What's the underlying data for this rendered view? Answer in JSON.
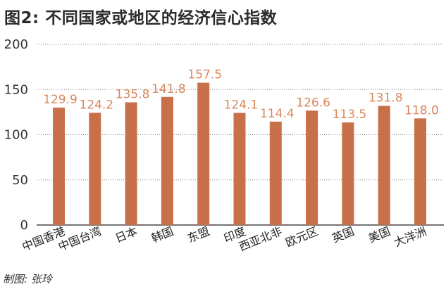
{
  "title": "图2: 不同国家或地区的经济信心指数",
  "credit": "制图: 张玲",
  "colors": {
    "bar": "#c8704a",
    "value_label": "#d9875c",
    "grid": "#8a8a8a",
    "axis": "#222222"
  },
  "chart_data": {
    "type": "bar",
    "title": "图2: 不同国家或地区的经济信心指数",
    "xlabel": "",
    "ylabel": "",
    "ylim": [
      0,
      200
    ],
    "yticks": [
      0,
      50,
      100,
      150,
      200
    ],
    "grid": true,
    "categories": [
      "中国香港",
      "中国台湾",
      "日本",
      "韩国",
      "东盟",
      "印度",
      "西亚北非",
      "欧元区",
      "英国",
      "美国",
      "大洋洲"
    ],
    "values": [
      129.9,
      124.2,
      135.8,
      141.8,
      157.5,
      124.1,
      114.4,
      126.6,
      113.5,
      131.8,
      118.0
    ],
    "value_labels": [
      "129.9",
      "124.2",
      "135.8",
      "141.8",
      "157.5",
      "124.1",
      "114.4",
      "126.6",
      "113.5",
      "131.8",
      "118.0"
    ]
  }
}
